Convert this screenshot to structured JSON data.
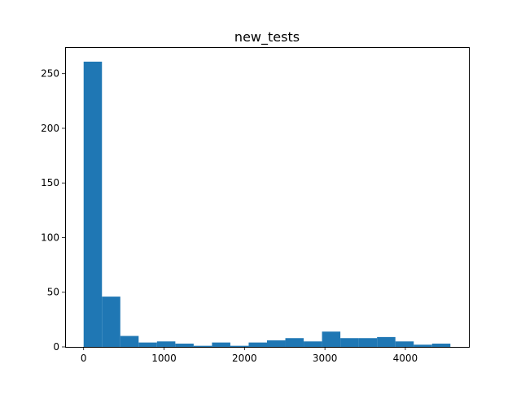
{
  "chart_data": {
    "type": "bar",
    "title": "new_tests",
    "xlabel": "",
    "ylabel": "",
    "xlim": [
      -230,
      4790
    ],
    "ylim": [
      0,
      274.3
    ],
    "x_ticks": [
      0,
      1000,
      2000,
      3000,
      4000
    ],
    "y_ticks": [
      0,
      50,
      100,
      150,
      200,
      250
    ],
    "bin_edges": [
      0,
      228,
      456,
      684,
      912,
      1140,
      1368,
      1596,
      1824,
      2052,
      2280,
      2508,
      2736,
      2964,
      3192,
      3420,
      3648,
      3876,
      4104,
      4332,
      4560
    ],
    "values": [
      261,
      46,
      10,
      4,
      5,
      3,
      1,
      4,
      1,
      4,
      6,
      8,
      5,
      14,
      8,
      8,
      9,
      5,
      2,
      3
    ],
    "color": "#1f77b4",
    "grid": false
  }
}
